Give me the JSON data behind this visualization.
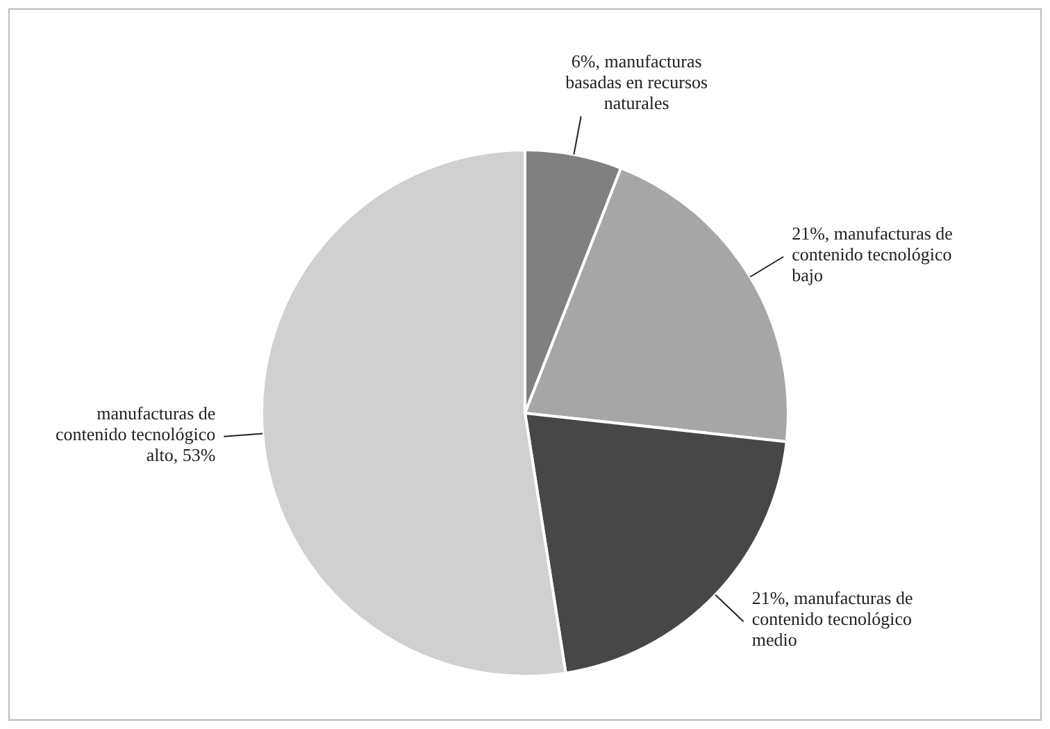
{
  "chart_data": {
    "type": "pie",
    "categories": [
      "manufacturas basadas en recursos naturales",
      "manufacturas de contenido tecnológico bajo",
      "manufacturas de contenido tecnológico medio",
      "manufacturas de contenido tecnológico alto"
    ],
    "values": [
      6,
      21,
      21,
      53
    ],
    "colors": [
      "#808080",
      "#a6a6a6",
      "#474747",
      "#d0d0d0"
    ],
    "value_labels": [
      "6%",
      "21%",
      "21%",
      "53%"
    ],
    "legend": false
  }
}
